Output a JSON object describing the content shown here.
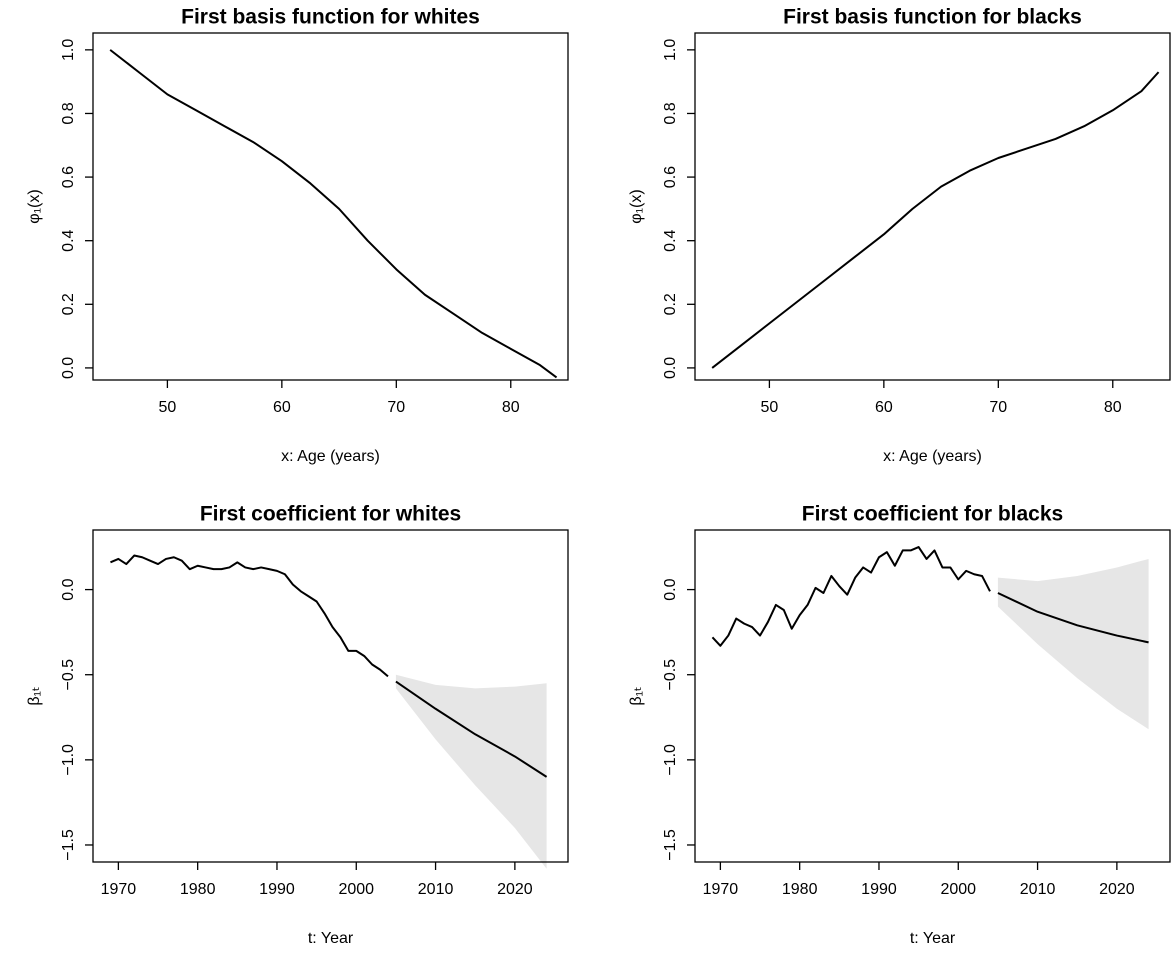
{
  "chart_data": [
    {
      "type": "line",
      "title": "First basis function for whites",
      "xlabel": "x: Age (years)",
      "ylabel": "φ₁(x)",
      "xlim": [
        43.5,
        85.0
      ],
      "ylim": [
        -0.038,
        1.053
      ],
      "xticks": [
        50,
        60,
        70,
        80
      ],
      "yticks": [
        {
          "value": 0,
          "label": "0.0"
        },
        0.2,
        0.4,
        0.6,
        0.8,
        {
          "value": 1,
          "label": "1.0"
        }
      ],
      "series": [
        {
          "color": "#000000",
          "x": [
            45,
            47.5,
            50,
            52.5,
            55,
            57.5,
            60,
            62.5,
            65,
            67.5,
            70,
            72.5,
            75,
            77.5,
            80,
            82.5,
            84
          ],
          "values": [
            1.0,
            0.93,
            0.86,
            0.81,
            0.76,
            0.71,
            0.65,
            0.58,
            0.5,
            0.4,
            0.31,
            0.23,
            0.17,
            0.11,
            0.06,
            0.01,
            -0.03
          ]
        }
      ]
    },
    {
      "type": "line",
      "title": "First basis function for blacks",
      "xlabel": "x: Age (years)",
      "ylabel": "φ₁(x)",
      "xlim": [
        43.5,
        85.0
      ],
      "ylim": [
        -0.038,
        1.053
      ],
      "xticks": [
        50,
        60,
        70,
        80
      ],
      "yticks": [
        {
          "value": 0,
          "label": "0.0"
        },
        0.2,
        0.4,
        0.6,
        0.8,
        {
          "value": 1,
          "label": "1.0"
        }
      ],
      "series": [
        {
          "color": "#000000",
          "x": [
            45,
            47.5,
            50,
            52.5,
            55,
            57.5,
            60,
            62.5,
            65,
            67.5,
            70,
            72.5,
            75,
            77.5,
            80,
            82.5,
            84
          ],
          "values": [
            0.0,
            0.07,
            0.14,
            0.21,
            0.28,
            0.35,
            0.42,
            0.5,
            0.57,
            0.62,
            0.66,
            0.69,
            0.72,
            0.76,
            0.81,
            0.87,
            0.93
          ]
        }
      ]
    },
    {
      "type": "line",
      "title": "First coefficient for whites",
      "xlabel": "t: Year",
      "ylabel": "β₁ₜ",
      "xlim": [
        1966.8,
        2026.7
      ],
      "ylim": [
        -1.6,
        0.35
      ],
      "xticks": [
        1970,
        1980,
        1990,
        2000,
        2010,
        2020
      ],
      "yticks": [
        {
          "value": 0,
          "label": "0.0"
        },
        {
          "value": -0.5,
          "label": "−0.5"
        },
        {
          "value": -1,
          "label": "−1.0"
        },
        {
          "value": -1.5,
          "label": "−1.5"
        }
      ],
      "series": [
        {
          "color": "#000000",
          "x": [
            1969,
            1970,
            1971,
            1972,
            1973,
            1974,
            1975,
            1976,
            1977,
            1978,
            1979,
            1980,
            1981,
            1982,
            1983,
            1984,
            1985,
            1986,
            1987,
            1988,
            1989,
            1990,
            1991,
            1992,
            1993,
            1994,
            1995,
            1996,
            1997,
            1998,
            1999,
            2000,
            2001,
            2002,
            2003,
            2004
          ],
          "values": [
            0.16,
            0.18,
            0.15,
            0.2,
            0.19,
            0.17,
            0.15,
            0.18,
            0.19,
            0.17,
            0.12,
            0.14,
            0.13,
            0.12,
            0.12,
            0.13,
            0.16,
            0.13,
            0.12,
            0.13,
            0.12,
            0.11,
            0.09,
            0.03,
            -0.01,
            -0.04,
            -0.07,
            -0.14,
            -0.22,
            -0.28,
            -0.36,
            -0.36,
            -0.39,
            -0.44,
            -0.47,
            -0.51
          ]
        },
        {
          "color": "#000000",
          "band_color": "#e6e6e6",
          "x": [
            2005,
            2010,
            2015,
            2020,
            2024
          ],
          "values": [
            -0.54,
            -0.7,
            -0.85,
            -0.98,
            -1.1
          ],
          "upper": [
            -0.5,
            -0.56,
            -0.58,
            -0.57,
            -0.55
          ],
          "lower": [
            -0.58,
            -0.88,
            -1.15,
            -1.4,
            -1.64
          ]
        }
      ]
    },
    {
      "type": "line",
      "title": "First coefficient for blacks",
      "xlabel": "t: Year",
      "ylabel": "β₁ₜ",
      "xlim": [
        1966.8,
        2026.7
      ],
      "ylim": [
        -1.6,
        0.35
      ],
      "xticks": [
        1970,
        1980,
        1990,
        2000,
        2010,
        2020
      ],
      "yticks": [
        {
          "value": 0,
          "label": "0.0"
        },
        {
          "value": -0.5,
          "label": "−0.5"
        },
        {
          "value": -1,
          "label": "−1.0"
        },
        {
          "value": -1.5,
          "label": "−1.5"
        }
      ],
      "series": [
        {
          "color": "#000000",
          "x": [
            1969,
            1970,
            1971,
            1972,
            1973,
            1974,
            1975,
            1976,
            1977,
            1978,
            1979,
            1980,
            1981,
            1982,
            1983,
            1984,
            1985,
            1986,
            1987,
            1988,
            1989,
            1990,
            1991,
            1992,
            1993,
            1994,
            1995,
            1996,
            1997,
            1998,
            1999,
            2000,
            2001,
            2002,
            2003,
            2004
          ],
          "values": [
            -0.28,
            -0.33,
            -0.27,
            -0.17,
            -0.2,
            -0.22,
            -0.27,
            -0.19,
            -0.09,
            -0.12,
            -0.23,
            -0.15,
            -0.09,
            0.01,
            -0.02,
            0.08,
            0.02,
            -0.03,
            0.07,
            0.13,
            0.1,
            0.19,
            0.22,
            0.14,
            0.23,
            0.23,
            0.25,
            0.18,
            0.23,
            0.13,
            0.13,
            0.06,
            0.11,
            0.09,
            0.08,
            -0.01
          ]
        },
        {
          "color": "#000000",
          "band_color": "#e6e6e6",
          "x": [
            2005,
            2010,
            2015,
            2020,
            2024
          ],
          "values": [
            -0.02,
            -0.13,
            -0.21,
            -0.27,
            -0.31
          ],
          "upper": [
            0.07,
            0.05,
            0.08,
            0.13,
            0.18
          ],
          "lower": [
            -0.1,
            -0.32,
            -0.52,
            -0.7,
            -0.82
          ]
        }
      ]
    }
  ]
}
